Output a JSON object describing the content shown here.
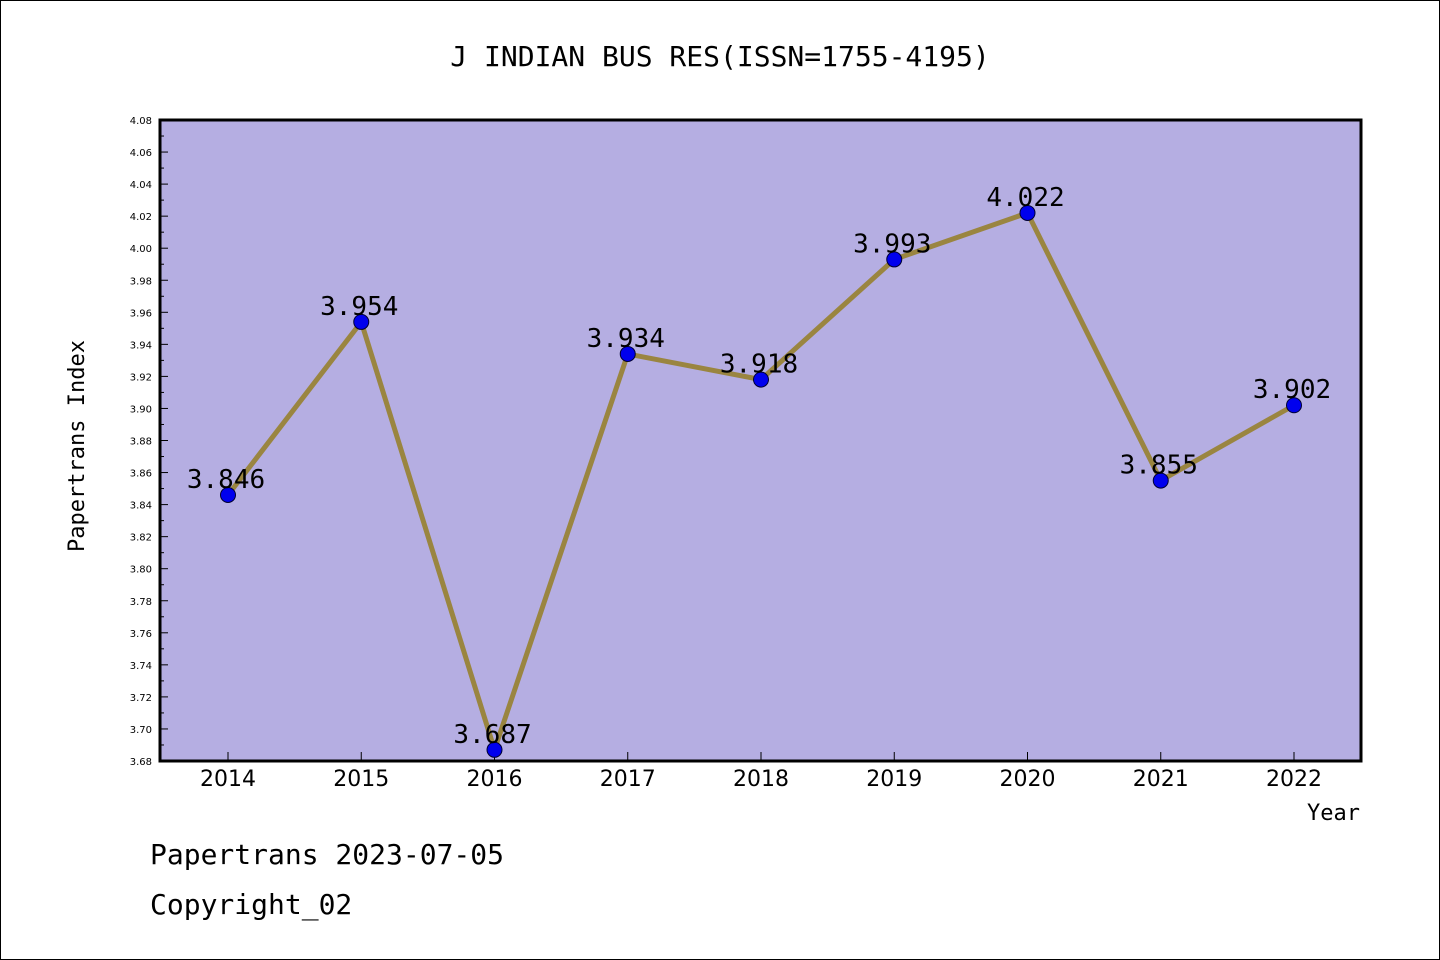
{
  "chart_data": {
    "type": "line",
    "title": "J INDIAN BUS RES(ISSN=1755-4195)",
    "xlabel": "Year",
    "ylabel": "Papertrans Index",
    "categories": [
      "2014",
      "2015",
      "2016",
      "2017",
      "2018",
      "2019",
      "2020",
      "2021",
      "2022"
    ],
    "series": [
      {
        "values": [
          3.846,
          3.954,
          3.687,
          3.934,
          3.918,
          3.993,
          4.022,
          3.855,
          3.902
        ],
        "data_labels": [
          "3.846",
          "3.954",
          "3.687",
          "3.934",
          "3.918",
          "3.993",
          "4.022",
          "3.855",
          "3.902"
        ]
      }
    ],
    "ylim": [
      3.68,
      4.08
    ],
    "yticks": [
      "3.68",
      "3.70",
      "3.72",
      "3.74",
      "3.76",
      "3.78",
      "3.80",
      "3.82",
      "3.84",
      "3.86",
      "3.88",
      "3.90",
      "3.92",
      "3.94",
      "3.96",
      "3.98",
      "4.00",
      "4.02",
      "4.04",
      "4.06",
      "4.08"
    ],
    "grid": false,
    "colors": {
      "plot_background": "#b5aee2",
      "line": "#9a8540",
      "marker": "#0000ee"
    }
  },
  "footer": {
    "line1": "Papertrans 2023-07-05",
    "line2": "Copyright_02"
  }
}
